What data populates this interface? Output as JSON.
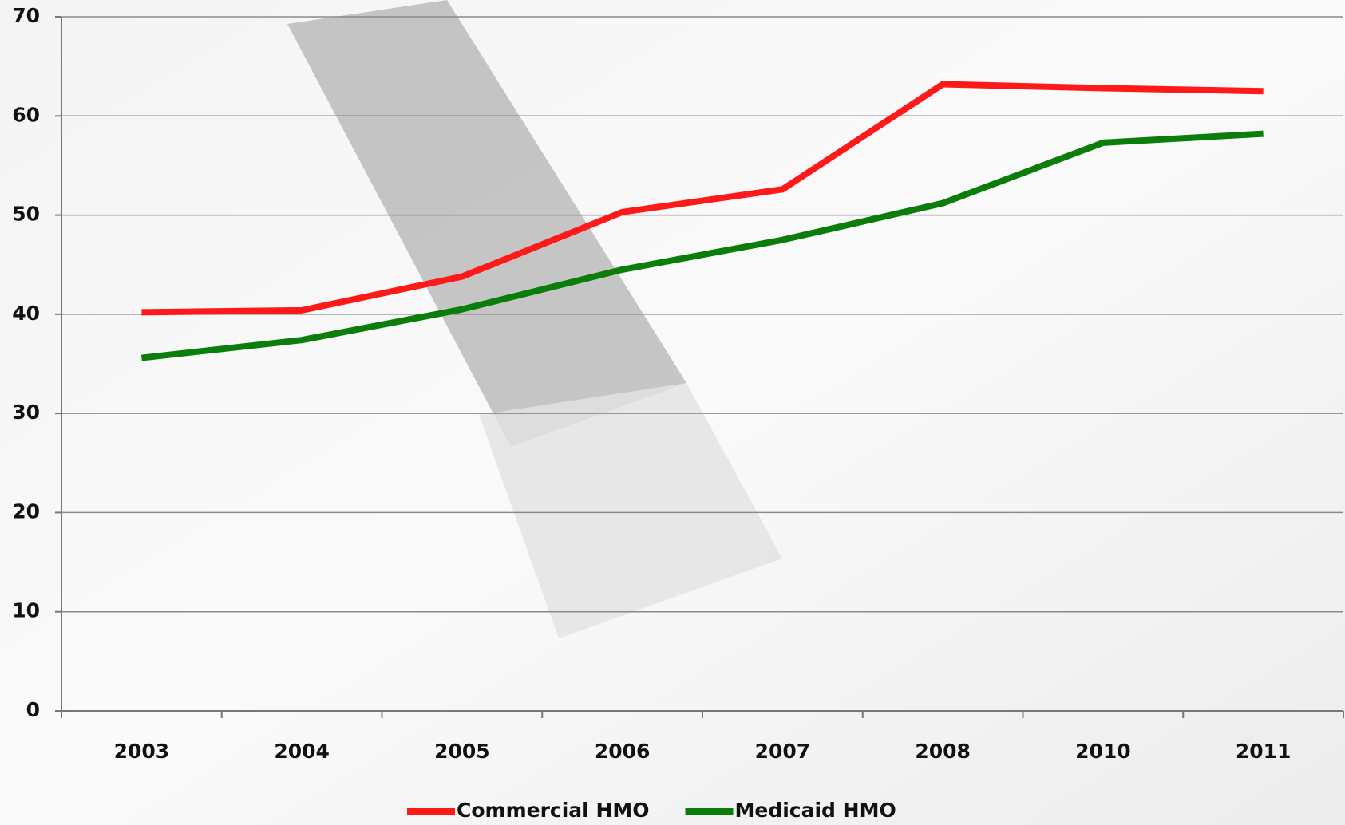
{
  "chart_data": {
    "type": "line",
    "categories": [
      "2003",
      "2004",
      "2005",
      "2006",
      "2007",
      "2008",
      "2010",
      "2011"
    ],
    "series": [
      {
        "name": "Commercial HMO",
        "color": "#ff1a1a",
        "values": [
          40.2,
          40.4,
          43.8,
          50.3,
          52.6,
          63.2,
          62.8,
          62.5
        ]
      },
      {
        "name": "Medicaid HMO",
        "color": "#0a7d0a",
        "values": [
          35.6,
          37.4,
          40.5,
          44.5,
          47.5,
          51.2,
          57.3,
          58.2
        ]
      }
    ],
    "ylim": [
      0,
      70
    ],
    "yticks": [
      0,
      10,
      20,
      30,
      40,
      50,
      60,
      70
    ],
    "grid": true,
    "legend": "bottom"
  }
}
